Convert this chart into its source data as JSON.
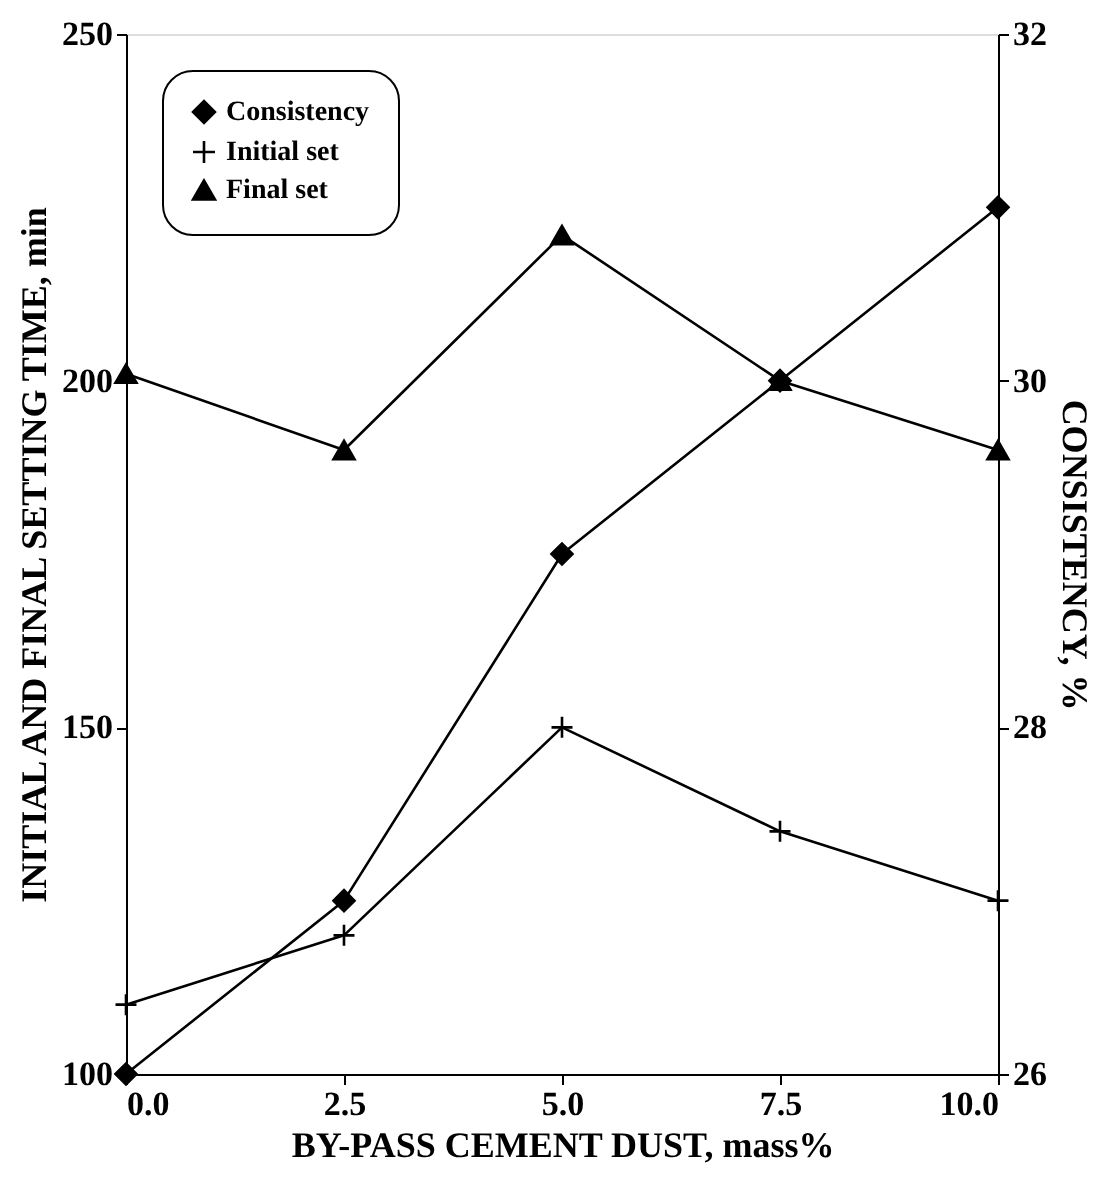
{
  "chart_data": {
    "type": "line",
    "xlabel": "BY-PASS CEMENT DUST, mass%",
    "ylabel": "INITIAL AND FINAL SETTING TIME, min",
    "y2label": "CONSISTENCY, %",
    "x": [
      0,
      2.5,
      5,
      7.5,
      10
    ],
    "xlim": [
      0,
      10
    ],
    "xticks": [
      {
        "value": 0,
        "label": "0.0"
      },
      {
        "value": 2.5,
        "label": "2.5"
      },
      {
        "value": 5,
        "label": "5.0"
      },
      {
        "value": 7.5,
        "label": "7.5"
      },
      {
        "value": 10,
        "label": "10.0"
      }
    ],
    "ylim": [
      100,
      250
    ],
    "yticks": [
      100,
      150,
      200,
      250
    ],
    "y2lim": [
      26,
      32
    ],
    "y2ticks": [
      26,
      28,
      30,
      32
    ],
    "grid": false,
    "legend": "top left",
    "line_style": "solid",
    "series": [
      {
        "name": "Consistency",
        "color": "#000000",
        "axis": "y2",
        "marker": "diamond",
        "values": [
          26,
          27,
          29,
          30,
          31
        ]
      },
      {
        "name": "Initial set",
        "color": "#000000",
        "marker": "cross",
        "values": [
          110,
          120,
          150,
          135,
          125
        ]
      },
      {
        "name": "Final set",
        "color": "#000000",
        "marker": "triangle",
        "values": [
          201,
          190,
          221,
          200,
          190
        ]
      }
    ]
  }
}
